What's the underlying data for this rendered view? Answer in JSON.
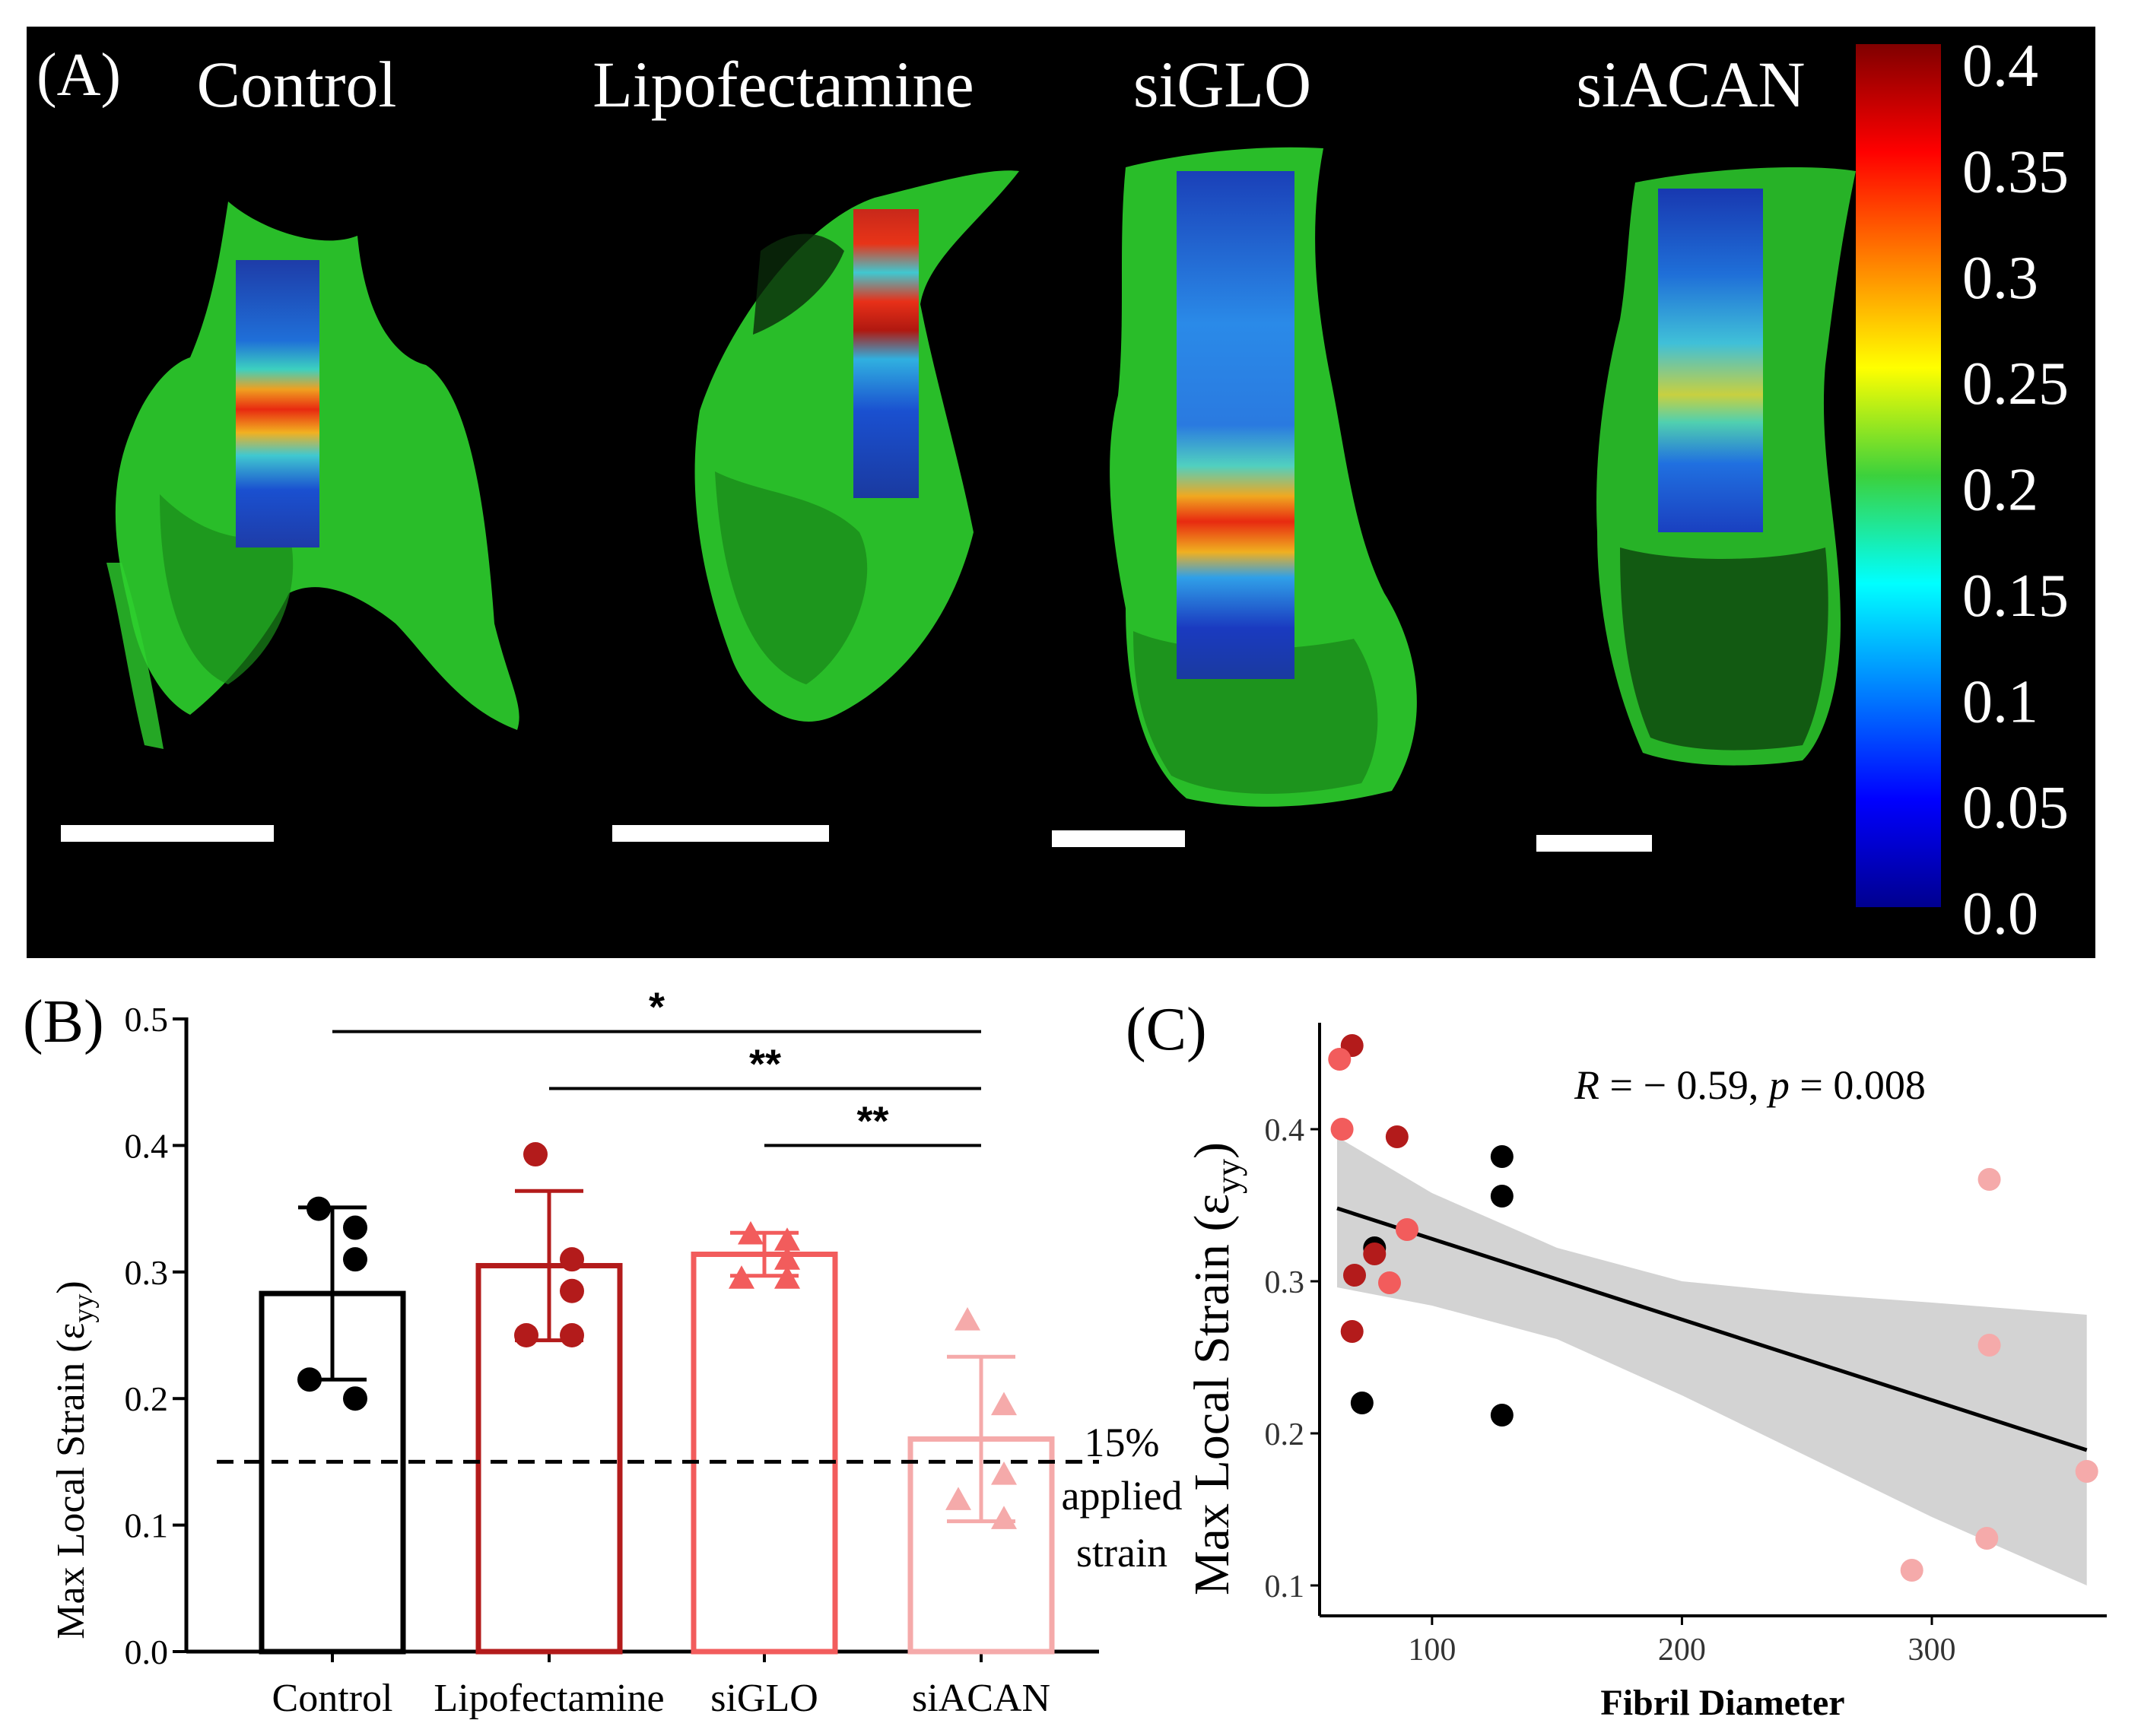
{
  "panel_a": {
    "label": "(A)",
    "columns": [
      "Control",
      "Lipofectamine",
      "siGLO",
      "siACAN"
    ],
    "colorbar": {
      "ticks": [
        "0.4",
        "0.35",
        "0.3",
        "0.25",
        "0.2",
        "0.15",
        "0.1",
        "0.05",
        "0.0"
      ],
      "range": [
        0,
        0.4
      ]
    },
    "colors": {
      "background": "#000000",
      "tissue": "#2ed12e",
      "scale_bar": "#ffffff"
    }
  },
  "panel_b": {
    "label": "(B)"
  },
  "panel_c": {
    "label": "(C)"
  },
  "chart_data": [
    {
      "type": "bar",
      "panel": "B",
      "ylabel_main": "Max  Local Strain (ε",
      "ylabel_sub": "yy",
      "ylabel_close": ")",
      "ylim": [
        0,
        0.5
      ],
      "yticks": [
        "0.0",
        "0.1",
        "0.2",
        "0.3",
        "0.4",
        "0.5"
      ],
      "categories": [
        "Control",
        "Lipofectamine",
        "siGLO",
        "siACAN"
      ],
      "means": [
        0.283,
        0.305,
        0.314,
        0.168
      ],
      "sd": [
        0.068,
        0.059,
        0.017,
        0.065
      ],
      "points": [
        [
          0.35,
          0.335,
          0.31,
          0.215,
          0.2
        ],
        [
          0.393,
          0.31,
          0.285,
          0.25,
          0.25
        ],
        [
          0.33,
          0.325,
          0.31,
          0.295,
          0.295
        ],
        [
          0.262,
          0.195,
          0.14,
          0.12,
          0.105
        ]
      ],
      "markers": [
        "circle",
        "circle",
        "triangle",
        "triangle"
      ],
      "colors": [
        "#000000",
        "#b31b1b",
        "#f25c5c",
        "#f5aaaa"
      ],
      "reference_line": {
        "value": 0.15,
        "label_lines": [
          "15%",
          "applied",
          "strain"
        ]
      },
      "significance": [
        {
          "from": "Control",
          "to": "siACAN",
          "y": 0.49,
          "label": "*"
        },
        {
          "from": "Lipofectamine",
          "to": "siACAN",
          "y": 0.445,
          "label": "**"
        },
        {
          "from": "siGLO",
          "to": "siACAN",
          "y": 0.4,
          "label": "**"
        }
      ]
    },
    {
      "type": "scatter",
      "panel": "C",
      "annotation_r": "R",
      "annotation_rest": " = − 0.59, ",
      "annotation_p": "p",
      "annotation_tail": " = 0.008",
      "xlabel": "Fibril Diameter",
      "ylabel_main": "Max Local Strain (ε",
      "ylabel_sub": "yy",
      "ylabel_close": ")",
      "xlim": [
        55,
        370
      ],
      "ylim": [
        0.08,
        0.47
      ],
      "xticks": [
        100,
        200,
        300
      ],
      "yticks": [
        0.1,
        0.2,
        0.3,
        0.4
      ],
      "points": [
        {
          "x": 128,
          "y": 0.382,
          "color": "#000000"
        },
        {
          "x": 128,
          "y": 0.356,
          "color": "#000000"
        },
        {
          "x": 77,
          "y": 0.322,
          "color": "#000000"
        },
        {
          "x": 72,
          "y": 0.22,
          "color": "#000000"
        },
        {
          "x": 128,
          "y": 0.212,
          "color": "#000000"
        },
        {
          "x": 68,
          "y": 0.455,
          "color": "#b31b1b"
        },
        {
          "x": 86,
          "y": 0.395,
          "color": "#b31b1b"
        },
        {
          "x": 77,
          "y": 0.318,
          "color": "#b31b1b"
        },
        {
          "x": 69,
          "y": 0.304,
          "color": "#b31b1b"
        },
        {
          "x": 68,
          "y": 0.267,
          "color": "#b31b1b"
        },
        {
          "x": 63,
          "y": 0.446,
          "color": "#f25c5c"
        },
        {
          "x": 64,
          "y": 0.4,
          "color": "#f25c5c"
        },
        {
          "x": 90,
          "y": 0.334,
          "color": "#f25c5c"
        },
        {
          "x": 83,
          "y": 0.299,
          "color": "#f25c5c"
        },
        {
          "x": 323,
          "y": 0.367,
          "color": "#f5aaaa"
        },
        {
          "x": 323,
          "y": 0.258,
          "color": "#f5aaaa"
        },
        {
          "x": 362,
          "y": 0.175,
          "color": "#f5aaaa"
        },
        {
          "x": 322,
          "y": 0.131,
          "color": "#f5aaaa"
        },
        {
          "x": 292,
          "y": 0.11,
          "color": "#f5aaaa"
        }
      ],
      "fit": {
        "x": [
          62,
          362
        ],
        "y": [
          0.348,
          0.189
        ]
      },
      "ci_upper": [
        [
          62,
          0.395
        ],
        [
          100,
          0.358
        ],
        [
          150,
          0.322
        ],
        [
          200,
          0.3
        ],
        [
          250,
          0.292
        ],
        [
          300,
          0.286
        ],
        [
          362,
          0.278
        ]
      ],
      "ci_lower": [
        [
          62,
          0.296
        ],
        [
          100,
          0.284
        ],
        [
          150,
          0.262
        ],
        [
          200,
          0.225
        ],
        [
          250,
          0.185
        ],
        [
          300,
          0.145
        ],
        [
          362,
          0.1
        ]
      ]
    }
  ]
}
